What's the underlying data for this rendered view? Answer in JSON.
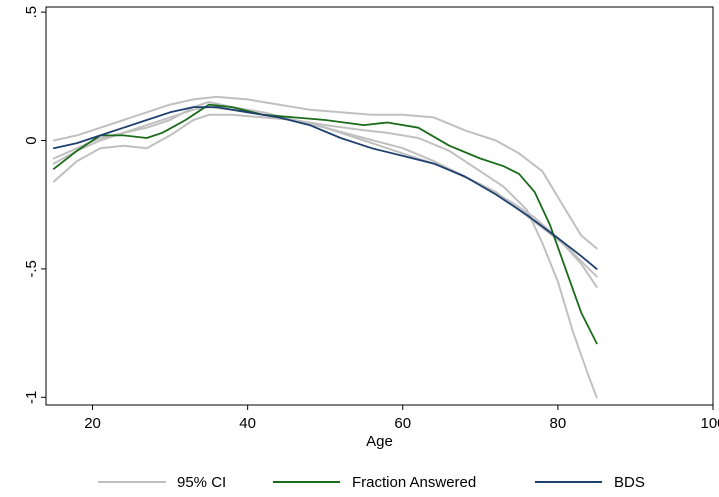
{
  "chart_data": {
    "type": "line",
    "xlabel": "Age",
    "ylabel": "",
    "xlim": [
      14,
      100
    ],
    "ylim": [
      -1.03,
      0.52
    ],
    "xticks": [
      {
        "value": 20,
        "label": "20"
      },
      {
        "value": 40,
        "label": "40"
      },
      {
        "value": 60,
        "label": "60"
      },
      {
        "value": 80,
        "label": "80"
      },
      {
        "value": 100,
        "label": "100"
      }
    ],
    "yticks": [
      {
        "value": 0.5,
        "label": ".5"
      },
      {
        "value": 0,
        "label": "0"
      },
      {
        "value": -0.5,
        "label": "-.5"
      },
      {
        "value": -1,
        "label": "-1"
      }
    ],
    "grid": false,
    "legend_position": "bottom",
    "legend": [
      {
        "label": "95% CI",
        "color": "#c0c0c0"
      },
      {
        "label": "Fraction Answered",
        "color": "#1a6b1a"
      },
      {
        "label": "BDS",
        "color": "#1f3f6e"
      }
    ],
    "series": [
      {
        "name": "95% CI",
        "color": "#c0c0c0",
        "x": [
          15,
          18,
          21,
          24,
          27,
          30,
          33,
          35,
          38,
          42,
          46,
          50,
          55,
          60,
          65,
          70,
          74,
          77,
          80,
          83,
          85
        ],
        "values": [
          -0.07,
          -0.03,
          0.01,
          0.03,
          0.05,
          0.08,
          0.13,
          0.15,
          0.13,
          0.11,
          0.08,
          0.05,
          0.0,
          -0.05,
          -0.1,
          -0.17,
          -0.24,
          -0.3,
          -0.38,
          -0.48,
          -0.57
        ]
      },
      {
        "name": "95% CI",
        "color": "#c0c0c0",
        "x": [
          15,
          18,
          21,
          24,
          27,
          30,
          33,
          36,
          40,
          44,
          48,
          52,
          56,
          60,
          64,
          68,
          72,
          75,
          78,
          81,
          83,
          85
        ],
        "values": [
          0.0,
          0.02,
          0.05,
          0.08,
          0.11,
          0.14,
          0.16,
          0.17,
          0.16,
          0.14,
          0.12,
          0.11,
          0.1,
          0.1,
          0.09,
          0.04,
          0.0,
          -0.05,
          -0.12,
          -0.27,
          -0.37,
          -0.42
        ]
      },
      {
        "name": "95% CI",
        "color": "#c0c0c0",
        "x": [
          15,
          18,
          21,
          24,
          27,
          30,
          33,
          35,
          38,
          42,
          46,
          50,
          55,
          58,
          62,
          66,
          70,
          73,
          76,
          78,
          80,
          82,
          84,
          85
        ],
        "values": [
          -0.16,
          -0.08,
          -0.03,
          -0.02,
          -0.03,
          0.02,
          0.08,
          0.1,
          0.1,
          0.09,
          0.08,
          0.06,
          0.04,
          0.03,
          0.01,
          -0.04,
          -0.12,
          -0.18,
          -0.27,
          -0.4,
          -0.55,
          -0.75,
          -0.92,
          -1.0
        ]
      },
      {
        "name": "95% CI",
        "color": "#c0c0c0",
        "x": [
          15,
          18,
          21,
          24,
          27,
          30,
          33,
          35,
          38,
          42,
          46,
          50,
          55,
          60,
          64,
          68,
          72,
          75,
          78,
          81,
          83,
          85
        ],
        "values": [
          -0.09,
          -0.04,
          0.0,
          0.03,
          0.06,
          0.09,
          0.12,
          0.13,
          0.12,
          0.1,
          0.08,
          0.05,
          0.01,
          -0.03,
          -0.08,
          -0.14,
          -0.2,
          -0.27,
          -0.34,
          -0.41,
          -0.47,
          -0.53
        ]
      },
      {
        "name": "Fraction Answered",
        "color": "#1a6b1a",
        "x": [
          15,
          18,
          21,
          24,
          27,
          29,
          32,
          35,
          38,
          42,
          46,
          50,
          55,
          58,
          62,
          66,
          70,
          73,
          75,
          77,
          79,
          81,
          83,
          85
        ],
        "values": [
          -0.11,
          -0.04,
          0.02,
          0.02,
          0.01,
          0.03,
          0.08,
          0.14,
          0.13,
          0.1,
          0.09,
          0.08,
          0.06,
          0.07,
          0.05,
          -0.02,
          -0.07,
          -0.1,
          -0.13,
          -0.2,
          -0.33,
          -0.5,
          -0.67,
          -0.79
        ]
      },
      {
        "name": "BDS",
        "color": "#1f3f6e",
        "x": [
          15,
          18,
          21,
          24,
          27,
          30,
          33,
          36,
          40,
          44,
          48,
          52,
          56,
          60,
          64,
          68,
          72,
          76,
          80,
          83,
          85
        ],
        "values": [
          -0.03,
          -0.01,
          0.02,
          0.05,
          0.08,
          0.11,
          0.13,
          0.13,
          0.11,
          0.09,
          0.06,
          0.01,
          -0.03,
          -0.06,
          -0.09,
          -0.14,
          -0.21,
          -0.29,
          -0.38,
          -0.45,
          -0.5
        ]
      }
    ]
  }
}
